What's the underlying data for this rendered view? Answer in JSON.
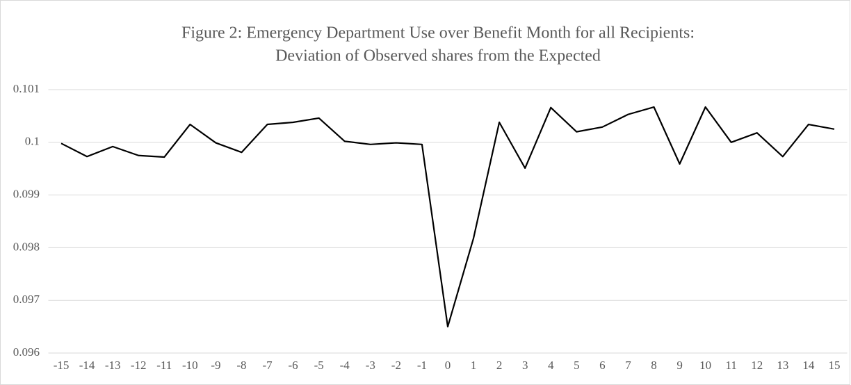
{
  "chart_data": {
    "type": "line",
    "title": [
      "Figure 2: Emergency Department Use over Benefit Month for all Recipients:",
      "Deviation of Observed shares from the Expected"
    ],
    "x": [
      -15,
      -14,
      -13,
      -12,
      -11,
      -10,
      -9,
      -8,
      -7,
      -6,
      -5,
      -4,
      -3,
      -2,
      -1,
      0,
      1,
      2,
      3,
      4,
      5,
      6,
      7,
      8,
      9,
      10,
      11,
      12,
      13,
      14,
      15
    ],
    "series": [
      {
        "color": "#000000",
        "values": [
          0.09998,
          0.09973,
          0.09992,
          0.09975,
          0.09972,
          0.10034,
          0.09999,
          0.09981,
          0.10034,
          0.10038,
          0.10046,
          0.10002,
          0.09996,
          0.09999,
          0.09996,
          0.0965,
          0.09818,
          0.10038,
          0.09951,
          0.10066,
          0.1002,
          0.10029,
          0.10053,
          0.10067,
          0.09959,
          0.10067,
          0.1,
          0.10018,
          0.09973,
          0.10034,
          0.10025
        ]
      }
    ],
    "ylim": [
      0.096,
      0.101
    ],
    "yticks": [
      0.096,
      0.097,
      0.098,
      0.099,
      0.1,
      0.101
    ],
    "grid": true
  }
}
